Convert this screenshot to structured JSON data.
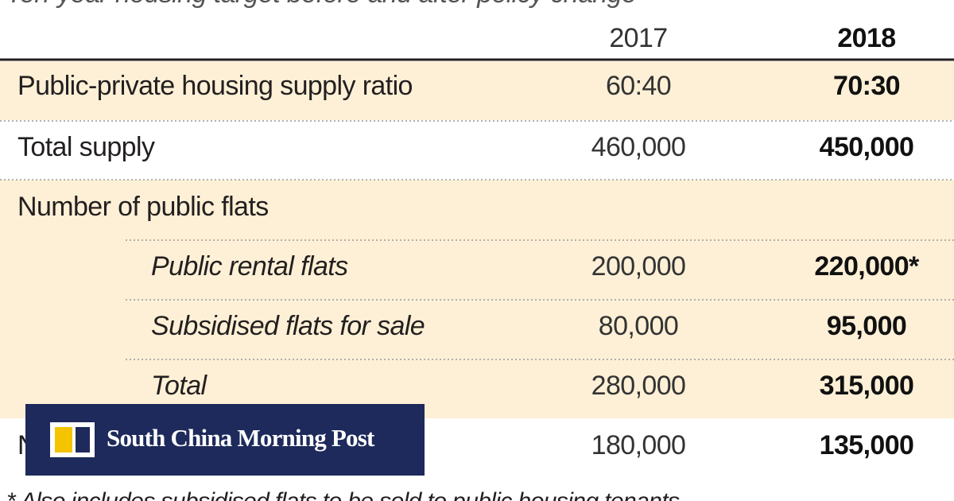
{
  "header": {
    "subtitle": "Ten-year housing target before and after policy change"
  },
  "table": {
    "columns": [
      "2017",
      "2018"
    ],
    "rows": [
      {
        "label": "Public-private housing supply ratio",
        "values": [
          "60:40",
          "70:30"
        ]
      },
      {
        "label": "Total supply",
        "values": [
          "460,000",
          "450,000"
        ]
      },
      {
        "label": "Number of public flats"
      },
      {
        "label": "Public rental flats",
        "values": [
          "200,000",
          "220,000*"
        ]
      },
      {
        "label": "Subsidised flats for sale",
        "values": [
          "80,000",
          "95,000"
        ]
      },
      {
        "label": "Total",
        "values": [
          "280,000",
          "315,000"
        ]
      },
      {
        "label": "Number of private flats",
        "values": [
          "180,000",
          "135,000"
        ]
      }
    ]
  },
  "footnote": "* Also includes subsidised flats to be sold to public housing tenants",
  "logo": {
    "text": "South China Morning Post"
  }
}
